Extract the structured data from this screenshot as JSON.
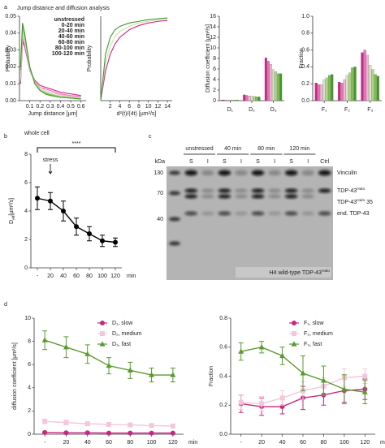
{
  "panels": [
    {
      "label": "a",
      "title": "Jump distance and diffusion analysis"
    },
    {
      "label": "b"
    },
    {
      "label": "c"
    },
    {
      "label": "d"
    }
  ],
  "chart_data": [
    {
      "type": "line",
      "xlabel": "Jump distance [µm]",
      "ylabel": "Probability",
      "legend": "upper right",
      "x": [
        0.01,
        0.03,
        0.05,
        0.08,
        0.1,
        0.15,
        0.2,
        0.25,
        0.3,
        0.4,
        0.5,
        0.6
      ],
      "xlim": [
        0,
        0.65
      ],
      "xticks": [
        0.1,
        0.2,
        0.3,
        0.4,
        0.5,
        0.6
      ],
      "ylim": [
        0,
        0.05
      ],
      "yticks": [
        {
          "value": 0,
          "label": "0.00"
        },
        0.01,
        0.02,
        0.03,
        0.04,
        0.05
      ],
      "series": [
        {
          "name": "unstressed",
          "color": "#d4218c",
          "values": [
            0.01,
            0.035,
            0.032,
            0.024,
            0.018,
            0.012,
            0.009,
            0.008,
            0.007,
            0.005,
            0.004,
            0.003
          ]
        },
        {
          "name": "0-20 min",
          "color": "#e873b5",
          "values": [
            0.011,
            0.037,
            0.033,
            0.025,
            0.018,
            0.011,
            0.008,
            0.007,
            0.006,
            0.004,
            0.003,
            0.0025
          ]
        },
        {
          "name": "20-40 min",
          "color": "#f2b6d6",
          "values": [
            0.012,
            0.039,
            0.035,
            0.026,
            0.019,
            0.011,
            0.008,
            0.006,
            0.005,
            0.0035,
            0.0025,
            0.002
          ]
        },
        {
          "name": "40-60 min",
          "color": "#d5e5c2",
          "values": [
            0.014,
            0.041,
            0.036,
            0.026,
            0.019,
            0.011,
            0.007,
            0.005,
            0.004,
            0.003,
            0.002,
            0.0015
          ]
        },
        {
          "name": "60-80 min",
          "color": "#b2d48f",
          "values": [
            0.016,
            0.043,
            0.038,
            0.027,
            0.02,
            0.011,
            0.007,
            0.005,
            0.004,
            0.0025,
            0.002,
            0.0012
          ]
        },
        {
          "name": "80-100 min",
          "color": "#7fbf4e",
          "values": [
            0.018,
            0.045,
            0.039,
            0.028,
            0.02,
            0.01,
            0.006,
            0.0045,
            0.0035,
            0.002,
            0.0015,
            0.001
          ]
        },
        {
          "name": "100-120 min",
          "color": "#3e9a26",
          "values": [
            0.02,
            0.046,
            0.04,
            0.028,
            0.02,
            0.01,
            0.006,
            0.004,
            0.003,
            0.002,
            0.0015,
            0.001
          ]
        }
      ]
    },
    {
      "type": "line",
      "xlabel": {
        "text": "d²(t)/(4t) [µm²/s]"
      },
      "ylabel": "Probability",
      "x": [
        0,
        1,
        2,
        3,
        4,
        6,
        8,
        10,
        12,
        14
      ],
      "xlim": [
        0,
        15
      ],
      "xticks": [
        2,
        4,
        6,
        8,
        10,
        12,
        14
      ],
      "ylim": [
        0,
        1
      ],
      "series": [
        {
          "color": "#d4218c",
          "values": [
            0,
            0.35,
            0.55,
            0.67,
            0.75,
            0.84,
            0.89,
            0.92,
            0.94,
            0.95
          ]
        },
        {
          "color": "#c9e0b0",
          "values": [
            0,
            0.45,
            0.65,
            0.76,
            0.82,
            0.88,
            0.92,
            0.94,
            0.96,
            0.97
          ]
        },
        {
          "color": "#3e9a26",
          "values": [
            0,
            0.55,
            0.75,
            0.84,
            0.88,
            0.92,
            0.94,
            0.96,
            0.97,
            0.98
          ]
        }
      ]
    },
    {
      "type": "bar",
      "ylabel": "Diffusion coefficient [µm²/s]",
      "categories": [
        "D₁",
        "D₂",
        "D₃"
      ],
      "ylim": [
        0,
        16
      ],
      "yticks": [
        0,
        2,
        4,
        6,
        8,
        10,
        12,
        14,
        16
      ],
      "series": [
        {
          "color": "#d4218c",
          "values": [
            0.15,
            1.1,
            8.1
          ]
        },
        {
          "color": "#e873b5",
          "values": [
            0.14,
            1.0,
            7.5
          ]
        },
        {
          "color": "#f2b6d6",
          "values": [
            0.13,
            0.9,
            6.9
          ]
        },
        {
          "color": "#d5e5c2",
          "values": [
            0.12,
            0.85,
            5.9
          ]
        },
        {
          "color": "#b2d48f",
          "values": [
            0.12,
            0.8,
            5.5
          ]
        },
        {
          "color": "#7fbf4e",
          "values": [
            0.11,
            0.75,
            5.1
          ]
        },
        {
          "color": "#3e9a26",
          "values": [
            0.11,
            0.7,
            5.1
          ]
        }
      ]
    },
    {
      "type": "bar",
      "ylabel": "Fraction",
      "categories": [
        "F₁",
        "F₂",
        "F₃"
      ],
      "ylim": [
        0,
        1
      ],
      "yticks": [
        {
          "value": 0,
          "label": "0.0"
        },
        0.2,
        0.4,
        0.6,
        0.8,
        {
          "value": 1,
          "label": "1.0"
        }
      ],
      "series": [
        {
          "color": "#d4218c",
          "values": [
            0.21,
            0.22,
            0.57
          ]
        },
        {
          "color": "#e873b5",
          "values": [
            0.19,
            0.21,
            0.6
          ]
        },
        {
          "color": "#f2b6d6",
          "values": [
            0.19,
            0.25,
            0.54
          ]
        },
        {
          "color": "#d5e5c2",
          "values": [
            0.25,
            0.3,
            0.42
          ]
        },
        {
          "color": "#b2d48f",
          "values": [
            0.27,
            0.33,
            0.37
          ]
        },
        {
          "color": "#7fbf4e",
          "values": [
            0.3,
            0.39,
            0.31
          ]
        },
        {
          "color": "#3e9a26",
          "values": [
            0.31,
            0.4,
            0.29
          ]
        }
      ]
    },
    {
      "type": "line",
      "title": "whole cell",
      "ylabel": {
        "text": "D",
        "sub": "eff",
        "suffix": "[µm²/s]"
      },
      "x_unit": "min",
      "categories": [
        "-",
        "20",
        "40",
        "60",
        "80",
        "100",
        "120"
      ],
      "ylim": [
        0,
        8
      ],
      "yticks": [
        0,
        2,
        4,
        6,
        8
      ],
      "annotations": [
        "stress",
        "****"
      ],
      "series": [
        {
          "color": "#000000",
          "marker": "circle",
          "values": [
            4.9,
            4.7,
            4.0,
            2.9,
            2.4,
            1.9,
            1.8
          ],
          "errors": [
            0.8,
            0.6,
            0.7,
            0.6,
            0.5,
            0.4,
            0.3
          ]
        }
      ]
    },
    {
      "type": "line",
      "ylabel": "diffusion coefficient [µm²/s]",
      "x_unit": "min",
      "legend": "upper right",
      "categories": [
        "-",
        "20",
        "40",
        "60",
        "80",
        "100",
        "120"
      ],
      "ylim": [
        0,
        10
      ],
      "yticks": [
        0,
        2,
        4,
        6,
        8,
        10
      ],
      "series": [
        {
          "name": "D₁, slow",
          "color": "#c8287f",
          "marker": "circle",
          "values": [
            0.15,
            0.12,
            0.12,
            0.1,
            0.1,
            0.1,
            0.1
          ],
          "errors": [
            0.05,
            0.05,
            0.05,
            0.04,
            0.04,
            0.04,
            0.04
          ]
        },
        {
          "name": "D₂, medium",
          "color": "#f4c6dc",
          "marker": "square",
          "values": [
            1.1,
            1.0,
            0.9,
            0.85,
            0.8,
            0.75,
            0.7
          ],
          "errors": [
            0.2,
            0.2,
            0.15,
            0.15,
            0.15,
            0.12,
            0.12
          ]
        },
        {
          "name": "D₃, fast",
          "color": "#5a9a2e",
          "marker": "triangle",
          "values": [
            8.1,
            7.5,
            6.9,
            5.9,
            5.5,
            5.1,
            5.1
          ],
          "errors": [
            0.8,
            0.9,
            0.8,
            0.7,
            0.7,
            0.6,
            0.6
          ]
        }
      ]
    },
    {
      "type": "line",
      "ylabel": "Fraction",
      "x_unit": "min",
      "legend": "upper right",
      "categories": [
        "-",
        "20",
        "40",
        "60",
        "80",
        "100",
        "120"
      ],
      "ylim": [
        0,
        0.8
      ],
      "yticks": [
        {
          "value": 0,
          "label": "0.0"
        },
        0.2,
        0.4,
        0.6,
        0.8
      ],
      "series": [
        {
          "name": "F₁, slow",
          "color": "#c8287f",
          "marker": "circle",
          "values": [
            0.21,
            0.19,
            0.19,
            0.25,
            0.27,
            0.3,
            0.31
          ],
          "errors": [
            0.06,
            0.06,
            0.05,
            0.08,
            0.07,
            0.08,
            0.07
          ]
        },
        {
          "name": "F₂, medium",
          "color": "#f4c6dc",
          "marker": "square",
          "values": [
            0.22,
            0.21,
            0.25,
            0.3,
            0.33,
            0.39,
            0.4
          ],
          "errors": [
            0.05,
            0.05,
            0.05,
            0.06,
            0.06,
            0.06,
            0.05
          ]
        },
        {
          "name": "F₃, fast",
          "color": "#5a9a2e",
          "marker": "triangle",
          "values": [
            0.57,
            0.6,
            0.54,
            0.42,
            0.37,
            0.31,
            0.29
          ],
          "errors": [
            0.06,
            0.04,
            0.06,
            0.12,
            0.1,
            0.1,
            0.08
          ]
        }
      ]
    }
  ],
  "blot": {
    "marker_unit": "kDa",
    "markers": [
      "130",
      "70",
      "40"
    ],
    "conditions": [
      "unstressed",
      "40 min",
      "80 min",
      "120 min"
    ],
    "lanes": [
      "S",
      "I",
      "S",
      "I",
      "S",
      "I",
      "S",
      "I",
      "Ctrl"
    ],
    "bands": [
      {
        "text": "Vinculin"
      },
      {
        "text": "TDP-43",
        "sup": "Halo"
      },
      {
        "text": "TDP-43",
        "sup": "Halo",
        "suffix": " 35"
      },
      {
        "text": "end. TDP-43"
      }
    ],
    "caption": {
      "text": "H4 wild-type TDP-43",
      "sup": "Halo"
    }
  }
}
